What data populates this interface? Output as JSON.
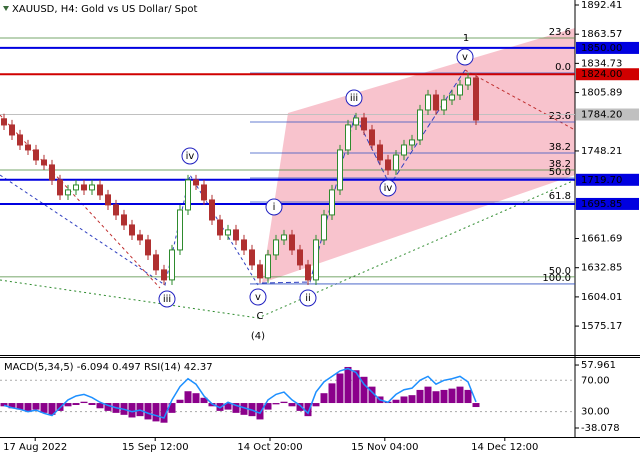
{
  "chart_data": [
    {
      "type": "candlestick",
      "title": "XAUUSD, H4:  Gold vs US Dollar/ Spot",
      "open": [
        1780.0,
        1773.9,
        1764.0,
        1754.1,
        1749.2,
        1739.3,
        1734.4,
        1719.6,
        1704.8,
        1709.7,
        1714.6,
        1709.7,
        1714.6,
        1704.8,
        1694.9,
        1685.0,
        1675.1,
        1665.2,
        1660.3,
        1645.5,
        1630.7,
        1620.8,
        1650.4,
        1689.9,
        1719.6,
        1714.6,
        1699.8,
        1680.0,
        1665.2,
        1670.2,
        1660.3,
        1650.4,
        1635.6,
        1622.8,
        1645.5,
        1660.3,
        1665.2,
        1650.4,
        1635.6,
        1620.8,
        1660.3,
        1685.0,
        1709.7,
        1749.2,
        1773.9,
        1780.8,
        1769.0,
        1754.1,
        1739.3,
        1729.4,
        1744.2,
        1754.1,
        1759.1,
        1788.7,
        1803.5,
        1788.7,
        1798.6,
        1803.5,
        1813.4,
        1820.3
      ],
      "high": [
        1785.0,
        1778.9,
        1769.0,
        1759.1,
        1754.2,
        1744.3,
        1739.4,
        1724.6,
        1714.7,
        1719.6,
        1719.6,
        1719.6,
        1719.6,
        1709.8,
        1699.9,
        1690.0,
        1680.1,
        1670.2,
        1665.3,
        1650.5,
        1635.7,
        1655.4,
        1694.9,
        1724.6,
        1724.6,
        1719.6,
        1704.8,
        1685.0,
        1675.2,
        1675.2,
        1665.3,
        1655.4,
        1640.6,
        1650.5,
        1665.3,
        1670.2,
        1670.2,
        1655.4,
        1640.6,
        1665.3,
        1690.0,
        1714.7,
        1754.2,
        1778.9,
        1785.8,
        1785.8,
        1774.0,
        1759.1,
        1744.3,
        1749.2,
        1759.1,
        1764.1,
        1793.7,
        1808.5,
        1808.5,
        1803.6,
        1808.5,
        1818.4,
        1825.3,
        1825.3
      ],
      "low": [
        1768.9,
        1759.0,
        1749.1,
        1744.2,
        1734.3,
        1729.4,
        1714.6,
        1699.8,
        1699.8,
        1704.7,
        1704.7,
        1704.7,
        1699.8,
        1689.9,
        1680.0,
        1670.1,
        1660.2,
        1655.3,
        1640.5,
        1625.7,
        1615.8,
        1615.8,
        1645.4,
        1684.9,
        1709.6,
        1694.8,
        1675.0,
        1660.2,
        1660.2,
        1655.3,
        1645.4,
        1630.6,
        1617.8,
        1617.8,
        1640.5,
        1655.3,
        1645.4,
        1630.6,
        1615.8,
        1615.8,
        1655.3,
        1680.0,
        1704.7,
        1744.2,
        1768.9,
        1764.0,
        1749.1,
        1734.3,
        1724.4,
        1724.4,
        1739.2,
        1749.1,
        1754.1,
        1783.7,
        1783.7,
        1783.7,
        1793.6,
        1798.5,
        1808.4,
        1773.8
      ],
      "close": [
        1773.9,
        1764.0,
        1754.1,
        1749.2,
        1739.3,
        1734.4,
        1719.6,
        1704.8,
        1709.7,
        1714.6,
        1709.7,
        1714.6,
        1704.8,
        1694.9,
        1685.0,
        1675.1,
        1665.2,
        1660.3,
        1645.5,
        1630.7,
        1620.8,
        1650.4,
        1689.9,
        1719.6,
        1714.6,
        1699.8,
        1680.0,
        1665.2,
        1670.2,
        1660.3,
        1650.4,
        1635.6,
        1622.8,
        1645.5,
        1660.3,
        1665.2,
        1650.4,
        1635.6,
        1620.8,
        1660.3,
        1685.0,
        1709.7,
        1749.2,
        1773.9,
        1780.8,
        1769.0,
        1754.1,
        1739.3,
        1729.4,
        1744.2,
        1754.1,
        1759.1,
        1788.7,
        1803.5,
        1788.7,
        1798.6,
        1803.5,
        1813.4,
        1820.3,
        1778.8
      ],
      "up_color": "#2e8b2e",
      "down_color": "#b03030",
      "ylim": [
        1546.6,
        1897.35
      ],
      "yticks": [
        1892.41,
        1863.57,
        1834.73,
        1805.89,
        1748.21,
        1661.69,
        1632.85,
        1604.01,
        1575.17
      ],
      "xlim": [
        -0.5,
        71.375
      ],
      "xticks": [
        {
          "value": 3.9,
          "label": "17 Aug 2022"
        },
        {
          "value": 18.9,
          "label": "15 Sep 12:00"
        },
        {
          "value": 33.25,
          "label": "14 Oct 20:00"
        },
        {
          "value": 47.6,
          "label": "15 Nov 04:00"
        },
        {
          "value": 62.6,
          "label": "14 Dec 12:00"
        }
      ],
      "levels": [
        {
          "value": 1850,
          "label": "1850.00",
          "color": "#0000e0",
          "text_color": "#ffffff"
        },
        {
          "value": 1824,
          "label": "1824.00",
          "color": "#d00000",
          "text_color": "#ffffff"
        },
        {
          "value": 1784.2,
          "label": "1784.20",
          "color": "#c0c0c0",
          "text_color": "#000000"
        },
        {
          "value": 1719.7,
          "label": "1719.70",
          "color": "#0000e0",
          "text_color": "#ffffff"
        },
        {
          "value": 1695.85,
          "label": "1695.85",
          "color": "#0000e0",
          "text_color": "#ffffff"
        }
      ],
      "fib_levels": [
        {
          "value": 1859.8,
          "label": "23.6",
          "color": "#4a8a3a"
        },
        {
          "value": 1825.2,
          "label": "0.0",
          "color": "#3050c0"
        },
        {
          "value": 1776.8,
          "label": "23.6",
          "color": "#3050c0"
        },
        {
          "value": 1746.2,
          "label": "38.2",
          "color": "#3050c0"
        },
        {
          "value": 1729.4,
          "label": "38.2",
          "color": "#4a8a3a"
        },
        {
          "value": 1721.5,
          "label": "50.0",
          "color": "#3050c0"
        },
        {
          "value": 1697.8,
          "label": "61.8",
          "color": "#3050c0"
        },
        {
          "value": 1623.8,
          "label": "50.0",
          "color": "#4a8a3a"
        },
        {
          "value": 1616.8,
          "label": "100.0",
          "color": "#3050c0"
        }
      ],
      "waves": [
        {
          "label": "1",
          "color": "#8b3a3a",
          "circled": false
        },
        {
          "label": "v",
          "color": "#2020c0",
          "circled": true
        },
        {
          "label": "iii",
          "color": "#2020c0",
          "circled": true
        },
        {
          "label": "iv",
          "color": "#2020c0",
          "circled": true
        },
        {
          "label": "iv",
          "color": "#2020c0",
          "circled": true
        },
        {
          "label": "i",
          "color": "#2020c0",
          "circled": true
        },
        {
          "label": "ii",
          "color": "#2020c0",
          "circled": true
        },
        {
          "label": "v",
          "color": "#2020c0",
          "circled": true
        },
        {
          "label": "iii",
          "color": "#2020c0",
          "circled": true
        },
        {
          "label": "C",
          "color": "#8b3a3a",
          "circled": false
        },
        {
          "label": "(4)",
          "color": "#2e8b2e",
          "circled": false
        }
      ]
    },
    {
      "type": "bar",
      "title": "MACD(5,34,5) -6.094 0.497 RSI(14) 42.37",
      "series": [
        {
          "color": "#8b008b",
          "values": [
            -5,
            -8,
            -10,
            -12,
            -10,
            -15,
            -18,
            -12,
            -5,
            -3,
            2,
            -3,
            -8,
            -12,
            -15,
            -18,
            -22,
            -20,
            -25,
            -28,
            -30,
            -15,
            5,
            18,
            15,
            8,
            -5,
            -12,
            -10,
            -15,
            -18,
            -20,
            -25,
            -10,
            -2,
            2,
            -5,
            -12,
            -20,
            -5,
            15,
            30,
            45,
            55,
            50,
            40,
            25,
            10,
            2,
            5,
            10,
            12,
            20,
            25,
            18,
            20,
            22,
            25,
            20,
            -6.094
          ]
        },
        {
          "color": "#1e90ff",
          "type": "line",
          "axis": "y2",
          "values": [
            38,
            35,
            33,
            30,
            32,
            28,
            25,
            35,
            45,
            50,
            52,
            48,
            42,
            38,
            35,
            33,
            30,
            32,
            28,
            25,
            22,
            45,
            62,
            72,
            65,
            50,
            40,
            35,
            42,
            38,
            35,
            32,
            28,
            45,
            52,
            55,
            45,
            38,
            28,
            55,
            68,
            75,
            82,
            85,
            80,
            65,
            55,
            45,
            42,
            52,
            58,
            60,
            70,
            75,
            65,
            70,
            72,
            75,
            68,
            42.37
          ]
        }
      ],
      "ylim": [
        -51.8,
        70.2
      ],
      "yticks": [
        57.961,
        -38.078
      ],
      "y2lim": [
        -2.3,
        99.7
      ],
      "y2ticks": [
        {
          "value": 70,
          "label": "70.00"
        },
        {
          "value": 30,
          "label": "30.00"
        }
      ]
    }
  ]
}
